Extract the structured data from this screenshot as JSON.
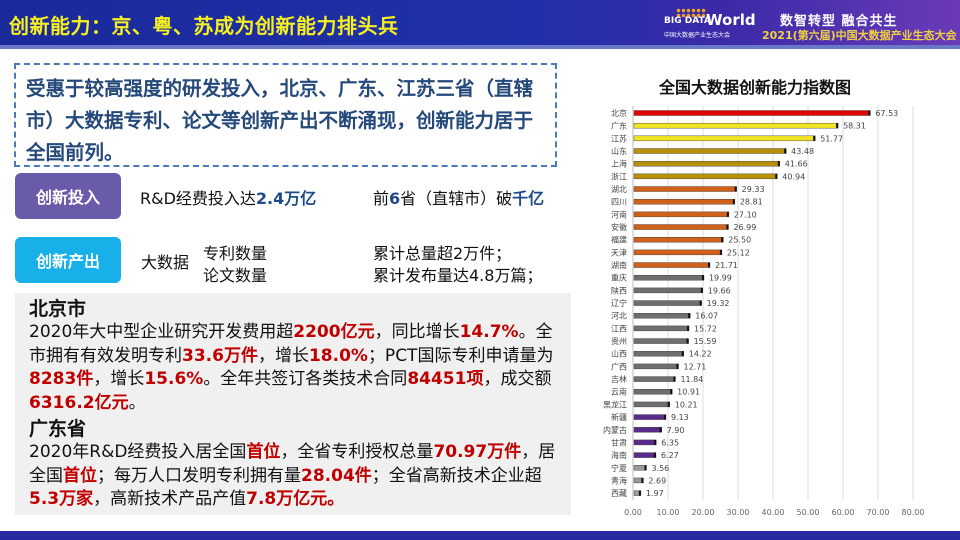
{
  "header": {
    "title": "创新能力：京、粤、苏成为创新能力排头兵",
    "logo_big": "BIG DATA",
    "logo_world": "World",
    "logo_sub": "中国大数据产业生态大会",
    "slogan": "数智转型  融合共生",
    "event": "2021(第六届)中国大数据产业生态大会"
  },
  "intro": "受惠于较高强度的研发投入，北京、广东、江苏三省（直辖市）大数据专利、论文等创新产出不断涌现，创新能力居于全国前列。",
  "input_tag": {
    "label": "创新投入",
    "color": "#6a5aaa"
  },
  "input_text1_a": "R&D经费投入达",
  "input_text1_b": "2.4万亿",
  "input_text2_a": "前",
  "input_text2_b": "6",
  "input_text2_c": "省（直辖市）破",
  "input_text2_d": "千亿",
  "output_tag": {
    "label": "创新产出",
    "color": "#18b0e8"
  },
  "output_big": "大数据",
  "output_item1": "专利数量",
  "output_item2": "论文数量",
  "output_val1": "累计总量超2万件；",
  "output_val2": "累计发布量达4.8万篇；",
  "beijing": {
    "heading": "北京市",
    "segments": [
      {
        "t": "2020年大中型企业研究开发费用超"
      },
      {
        "t": "2200亿元",
        "hl": true
      },
      {
        "t": "，同比增长"
      },
      {
        "t": "14.7%",
        "hl": true
      },
      {
        "t": "。全市拥有有效发明专利"
      },
      {
        "t": "33.6万件",
        "hl": true
      },
      {
        "t": "，增长"
      },
      {
        "t": "18.0%",
        "hl": true
      },
      {
        "t": "；PCT国际专利申请量为"
      },
      {
        "t": "8283件",
        "hl": true
      },
      {
        "t": "，增长"
      },
      {
        "t": "15.6%",
        "hl": true
      },
      {
        "t": "。全年共签订各类技术合同"
      },
      {
        "t": "84451项",
        "hl": true
      },
      {
        "t": "，成交额"
      },
      {
        "t": "6316.2亿元",
        "hl": true
      },
      {
        "t": "。"
      }
    ]
  },
  "guangdong": {
    "heading": "广东省",
    "segments": [
      {
        "t": "2020年R&D经费投入居全国"
      },
      {
        "t": "首位",
        "hl": true
      },
      {
        "t": "，全省专利授权总量"
      },
      {
        "t": "70.97万件",
        "hl": true
      },
      {
        "t": "，居全国"
      },
      {
        "t": "首位",
        "hl": true
      },
      {
        "t": "；每万人口发明专利拥有量"
      },
      {
        "t": "28.04件",
        "hl": true
      },
      {
        "t": "；全省高新技术企业超"
      },
      {
        "t": "5.3万家",
        "hl": true
      },
      {
        "t": "，高新技术产品产值"
      },
      {
        "t": "7.8万亿元。",
        "hl": true
      }
    ]
  },
  "chart_data": {
    "type": "bar",
    "orientation": "horizontal",
    "title": "全国大数据创新能力指数图",
    "categories": [
      "北京",
      "广东",
      "江苏",
      "山东",
      "上海",
      "浙江",
      "湖北",
      "四川",
      "河南",
      "安徽",
      "福建",
      "天津",
      "湖南",
      "重庆",
      "陕西",
      "辽宁",
      "河北",
      "江西",
      "贵州",
      "山西",
      "广西",
      "吉林",
      "云南",
      "黑龙江",
      "新疆",
      "内蒙古",
      "甘肃",
      "海南",
      "宁夏",
      "青海",
      "西藏"
    ],
    "values": [
      67.53,
      58.31,
      51.77,
      43.48,
      41.66,
      40.94,
      29.33,
      28.81,
      27.1,
      26.99,
      25.5,
      25.12,
      21.71,
      19.99,
      19.66,
      19.32,
      16.07,
      15.72,
      15.59,
      14.22,
      12.71,
      11.84,
      10.91,
      10.21,
      9.13,
      7.9,
      6.35,
      6.27,
      3.56,
      2.69,
      1.97
    ],
    "colors": [
      "#e00000",
      "#f2e424",
      "#f2e424",
      "#b8900a",
      "#b8900a",
      "#b8900a",
      "#d0601a",
      "#d0601a",
      "#d0601a",
      "#d0601a",
      "#d0601a",
      "#d0601a",
      "#d0601a",
      "#6e6e6e",
      "#6e6e6e",
      "#6e6e6e",
      "#6e6e6e",
      "#6e6e6e",
      "#6e6e6e",
      "#6e6e6e",
      "#6e6e6e",
      "#6e6e6e",
      "#6e6e6e",
      "#6e6e6e",
      "#5a2a8a",
      "#5a2a8a",
      "#5a2a8a",
      "#5a2a8a",
      "#9a9a9a",
      "#9a9a9a",
      "#9a9a9a"
    ],
    "xlim": [
      0,
      80
    ],
    "xticks": [
      "0.00",
      "10.00",
      "20.00",
      "30.00",
      "40.00",
      "50.00",
      "60.00",
      "70.00",
      "80.00"
    ],
    "grid": true,
    "data_labels": true
  }
}
